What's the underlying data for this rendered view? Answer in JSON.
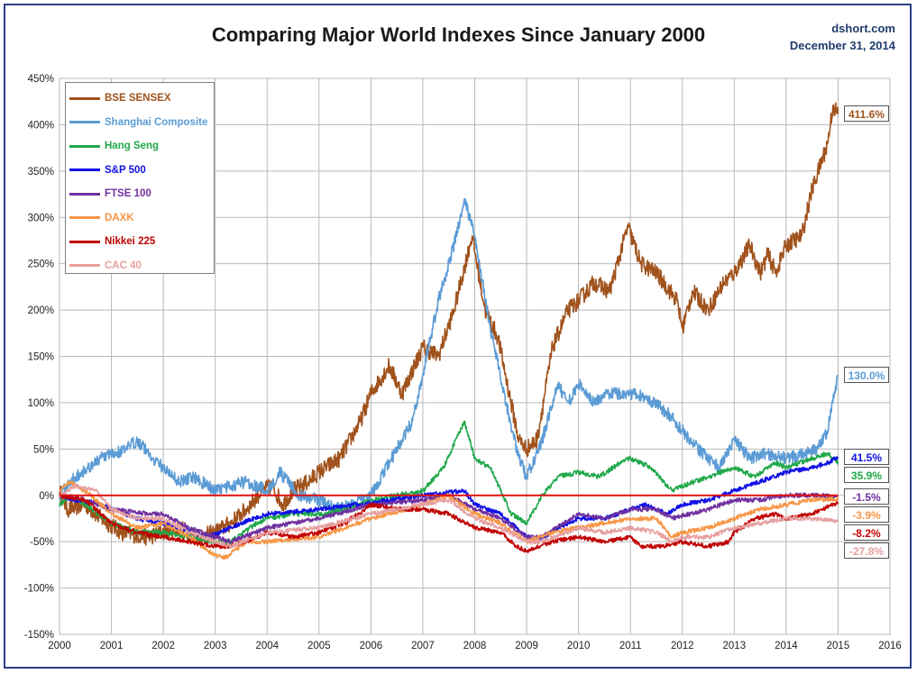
{
  "header": {
    "title": "Comparing Major World Indexes Since January 2000",
    "source": "dshort.com",
    "date": "December 31, 2014"
  },
  "chart_data": {
    "type": "line",
    "title": "Comparing Major World Indexes Since January 2000",
    "xlabel": "",
    "ylabel": "",
    "x_ticks": [
      "2000",
      "2001",
      "2002",
      "2003",
      "2004",
      "2005",
      "2006",
      "2007",
      "2008",
      "2009",
      "2010",
      "2011",
      "2012",
      "2013",
      "2014",
      "2015",
      "2016"
    ],
    "y_ticks": [
      "-150%",
      "-100%",
      "-50%",
      "0%",
      "50%",
      "100%",
      "150%",
      "200%",
      "250%",
      "300%",
      "350%",
      "400%",
      "450%"
    ],
    "xlim": [
      2000,
      2016
    ],
    "ylim": [
      -150,
      450
    ],
    "grid": true,
    "legend_position": "top-left",
    "baseline": 0,
    "baseline_color": "#e01010",
    "series": [
      {
        "name": "BSE SENSEX",
        "color": "#a0521c",
        "end_label": "411.6%",
        "x": [
          2000,
          2000.15,
          2000.5,
          2000.8,
          2001.2,
          2001.7,
          2002,
          2002.3,
          2002.7,
          2003,
          2003.3,
          2003.6,
          2003.9,
          2004.1,
          2004.3,
          2004.5,
          2004.8,
          2005,
          2005.4,
          2005.8,
          2006,
          2006.35,
          2006.6,
          2007,
          2007.3,
          2007.6,
          2007.95,
          2008.2,
          2008.45,
          2008.7,
          2008.85,
          2009,
          2009.2,
          2009.5,
          2009.8,
          2010,
          2010.3,
          2010.6,
          2010.95,
          2011.2,
          2011.5,
          2011.9,
          2012,
          2012.2,
          2012.5,
          2012.8,
          2013,
          2013.3,
          2013.5,
          2013.65,
          2013.8,
          2014,
          2014.3,
          2014.5,
          2014.8,
          2014.9,
          2015
        ],
        "y": [
          5,
          -15,
          -10,
          -25,
          -40,
          -45,
          -40,
          -35,
          -45,
          -40,
          -30,
          -15,
          5,
          10,
          -10,
          5,
          15,
          25,
          40,
          80,
          110,
          140,
          110,
          160,
          150,
          200,
          280,
          200,
          170,
          100,
          60,
          50,
          60,
          160,
          200,
          210,
          230,
          220,
          290,
          250,
          240,
          210,
          180,
          220,
          200,
          230,
          240,
          270,
          240,
          260,
          240,
          270,
          280,
          330,
          380,
          420,
          411.6
        ]
      },
      {
        "name": "Shanghai Composite",
        "color": "#5b9bd5",
        "end_label": "130.0%",
        "x": [
          2000,
          2000.3,
          2000.8,
          2001.3,
          2001.5,
          2001.8,
          2002,
          2002.3,
          2002.6,
          2003,
          2003.3,
          2003.6,
          2004,
          2004.25,
          2004.6,
          2005,
          2005.4,
          2005.8,
          2006,
          2006.4,
          2006.8,
          2007,
          2007.3,
          2007.6,
          2007.8,
          2008,
          2008.3,
          2008.6,
          2008.85,
          2009,
          2009.3,
          2009.6,
          2009.8,
          2010,
          2010.3,
          2010.6,
          2011,
          2011.3,
          2011.7,
          2012,
          2012.3,
          2012.7,
          2013,
          2013.3,
          2013.6,
          2014,
          2014.4,
          2014.6,
          2014.8,
          2014.9,
          2015
        ],
        "y": [
          0,
          20,
          40,
          50,
          60,
          40,
          30,
          15,
          20,
          5,
          10,
          15,
          5,
          25,
          0,
          -5,
          -15,
          -5,
          0,
          40,
          80,
          130,
          210,
          270,
          320,
          280,
          180,
          100,
          40,
          20,
          60,
          120,
          100,
          120,
          100,
          110,
          110,
          105,
          90,
          70,
          50,
          30,
          60,
          40,
          45,
          40,
          45,
          50,
          70,
          100,
          130
        ]
      },
      {
        "name": "Hang Seng",
        "color": "#1fa84a",
        "end_label": "35.9%",
        "x": [
          2000,
          2000.2,
          2000.5,
          2001,
          2001.5,
          2002,
          2002.5,
          2003,
          2003.3,
          2003.8,
          2004,
          2004.5,
          2005,
          2005.5,
          2006,
          2006.5,
          2007,
          2007.4,
          2007.8,
          2008,
          2008.3,
          2008.7,
          2009,
          2009.3,
          2009.6,
          2010,
          2010.4,
          2010.8,
          2011,
          2011.4,
          2011.8,
          2012,
          2012.5,
          2013,
          2013.4,
          2013.8,
          2014,
          2014.5,
          2014.8,
          2015
        ],
        "y": [
          -10,
          0,
          -10,
          -30,
          -40,
          -40,
          -45,
          -50,
          -50,
          -30,
          -25,
          -20,
          -20,
          -15,
          -5,
          0,
          5,
          30,
          80,
          40,
          30,
          -20,
          -30,
          0,
          20,
          25,
          20,
          35,
          40,
          30,
          5,
          10,
          20,
          30,
          20,
          35,
          30,
          40,
          45,
          35.9
        ]
      },
      {
        "name": "S&P 500",
        "color": "#1010e6",
        "end_label": "41.5%",
        "x": [
          2000,
          2000.3,
          2000.7,
          2001,
          2001.5,
          2002,
          2002.5,
          2002.8,
          2003,
          2003.5,
          2004,
          2004.5,
          2005,
          2006,
          2007,
          2007.8,
          2008,
          2008.5,
          2009,
          2009.2,
          2009.6,
          2010,
          2010.5,
          2011,
          2011.3,
          2011.7,
          2012,
          2012.5,
          2013,
          2013.5,
          2014,
          2014.5,
          2014.8,
          2015
        ],
        "y": [
          0,
          -5,
          -8,
          -15,
          -25,
          -30,
          -38,
          -45,
          -42,
          -30,
          -20,
          -18,
          -15,
          -8,
          0,
          5,
          -10,
          -20,
          -45,
          -50,
          -35,
          -25,
          -25,
          -15,
          -10,
          -20,
          -10,
          -5,
          5,
          15,
          25,
          30,
          35,
          41.5
        ]
      },
      {
        "name": "FTSE 100",
        "color": "#7030a0",
        "end_label": "-1.5%",
        "x": [
          2000,
          2000.5,
          2001,
          2001.7,
          2002,
          2002.5,
          2003,
          2003.3,
          2004,
          2005,
          2006,
          2007,
          2007.5,
          2008,
          2008.5,
          2009,
          2009.3,
          2010,
          2010.5,
          2011,
          2011.5,
          2011.8,
          2012.5,
          2013,
          2013.5,
          2014,
          2014.5,
          2015
        ],
        "y": [
          0,
          -5,
          -15,
          -20,
          -20,
          -35,
          -45,
          -50,
          -35,
          -25,
          -10,
          -5,
          0,
          -15,
          -25,
          -45,
          -45,
          -20,
          -25,
          -15,
          -15,
          -25,
          -15,
          -5,
          -5,
          0,
          0,
          -1.5
        ]
      },
      {
        "name": "DAXK",
        "color": "#f79646",
        "end_label": "-3.9%",
        "x": [
          2000,
          2000.2,
          2000.6,
          2001,
          2001.5,
          2002,
          2002.5,
          2003,
          2003.2,
          2003.6,
          2004,
          2005,
          2006,
          2007,
          2007.5,
          2008,
          2008.5,
          2009,
          2009.5,
          2010,
          2010.5,
          2011,
          2011.5,
          2011.8,
          2012,
          2012.5,
          2013,
          2013.5,
          2014,
          2014.5,
          2015
        ],
        "y": [
          5,
          15,
          0,
          -20,
          -35,
          -30,
          -45,
          -65,
          -67,
          -50,
          -50,
          -45,
          -25,
          -10,
          0,
          -20,
          -30,
          -50,
          -40,
          -35,
          -30,
          -25,
          -25,
          -45,
          -40,
          -35,
          -25,
          -15,
          -10,
          -5,
          -3.9
        ]
      },
      {
        "name": "Nikkei 225",
        "color": "#c00000",
        "end_label": "-8.2%",
        "x": [
          2000,
          2000.5,
          2001,
          2001.5,
          2002,
          2002.5,
          2003,
          2003.3,
          2003.8,
          2004,
          2004.5,
          2005,
          2005.5,
          2006,
          2006.5,
          2007,
          2007.5,
          2008,
          2008.5,
          2008.8,
          2009,
          2009.5,
          2010,
          2010.5,
          2011,
          2011.2,
          2011.6,
          2012,
          2012.5,
          2012.9,
          2013,
          2013.4,
          2013.8,
          2014,
          2014.5,
          2014.9,
          2015
        ],
        "y": [
          0,
          -5,
          -30,
          -40,
          -45,
          -50,
          -55,
          -55,
          -45,
          -40,
          -45,
          -40,
          -30,
          -10,
          -15,
          -15,
          -20,
          -35,
          -40,
          -55,
          -60,
          -50,
          -45,
          -50,
          -45,
          -55,
          -55,
          -50,
          -55,
          -50,
          -40,
          -25,
          -20,
          -25,
          -20,
          -10,
          -8.2
        ]
      },
      {
        "name": "CAC 40",
        "color": "#e6a0a0",
        "end_label": "-27.8%",
        "x": [
          2000,
          2000.3,
          2000.7,
          2001,
          2001.5,
          2002,
          2002.5,
          2003,
          2003.3,
          2004,
          2005,
          2006,
          2007,
          2007.5,
          2008,
          2008.5,
          2009,
          2009.3,
          2010,
          2010.5,
          2011,
          2011.5,
          2011.8,
          2012,
          2012.5,
          2013,
          2013.5,
          2014,
          2014.5,
          2015
        ],
        "y": [
          0,
          10,
          5,
          -15,
          -25,
          -25,
          -40,
          -50,
          -55,
          -40,
          -35,
          -20,
          -10,
          -5,
          -25,
          -35,
          -50,
          -50,
          -35,
          -40,
          -35,
          -40,
          -50,
          -45,
          -45,
          -35,
          -30,
          -25,
          -25,
          -27.8
        ]
      }
    ]
  }
}
